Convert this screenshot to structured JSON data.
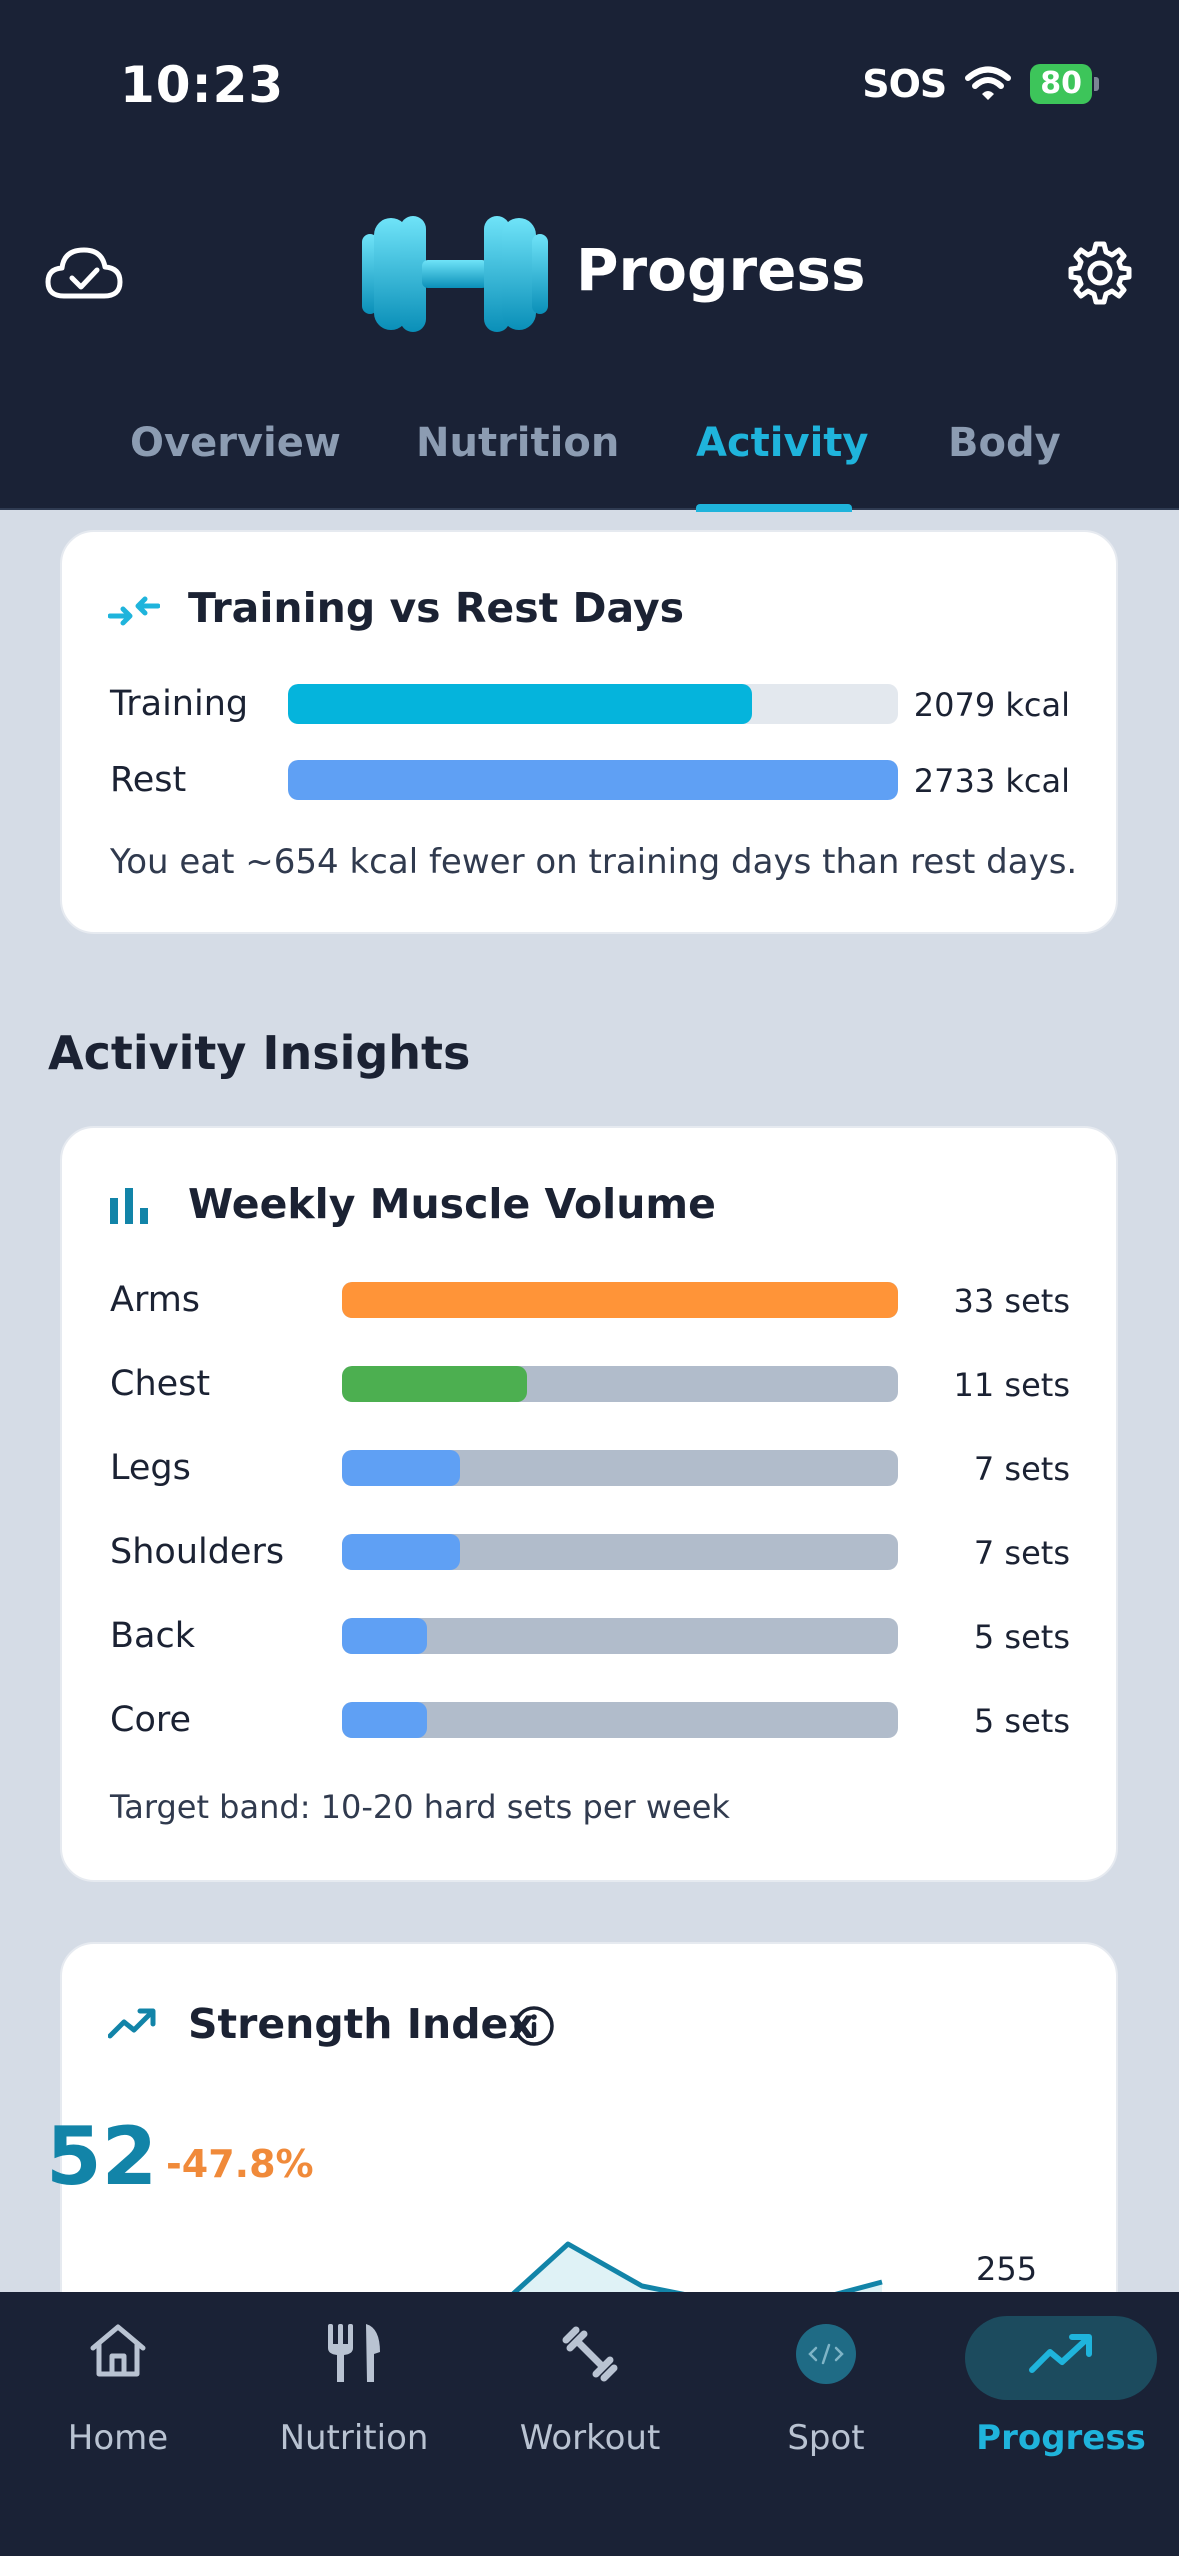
{
  "status_bar": {
    "time": "10:23",
    "sos": "SOS",
    "battery": "80"
  },
  "header": {
    "title": "Progress"
  },
  "tabs": [
    {
      "label": "Overview",
      "active": false
    },
    {
      "label": "Nutrition",
      "active": false
    },
    {
      "label": "Activity",
      "active": true
    },
    {
      "label": "Body",
      "active": false
    }
  ],
  "training_rest": {
    "title": "Training vs Rest Days",
    "rows": [
      {
        "label": "Training",
        "value": "2079 kcal",
        "fill": 0.76,
        "color": "#05b4dc"
      },
      {
        "label": "Rest",
        "value": "2733 kcal",
        "fill": 1.0,
        "color": "#5fa0f4"
      }
    ],
    "summary": "You eat ~654 kcal fewer on training days than rest days."
  },
  "activity_insights": {
    "title": "Activity Insights"
  },
  "muscle_volume": {
    "title": "Weekly Muscle Volume",
    "rows": [
      {
        "label": "Arms",
        "value": "33 sets",
        "fill": 1.0,
        "color": "#ff9438"
      },
      {
        "label": "Chest",
        "value": "11 sets",
        "fill": 0.333,
        "color": "#4caf50"
      },
      {
        "label": "Legs",
        "value": "7 sets",
        "fill": 0.212,
        "color": "#5fa0f4"
      },
      {
        "label": "Shoulders",
        "value": "7 sets",
        "fill": 0.212,
        "color": "#5fa0f4"
      },
      {
        "label": "Back",
        "value": "5 sets",
        "fill": 0.152,
        "color": "#5fa0f4"
      },
      {
        "label": "Core",
        "value": "5 sets",
        "fill": 0.152,
        "color": "#5fa0f4"
      }
    ],
    "footnote": "Target band: 10-20 hard sets per week"
  },
  "strength_index": {
    "title": "Strength Index",
    "value": "52",
    "change": "-47.8%",
    "chart_label": "255"
  },
  "bottom_nav": [
    {
      "label": "Home",
      "icon": "home-icon",
      "active": false
    },
    {
      "label": "Nutrition",
      "icon": "fork-knife-icon",
      "active": false
    },
    {
      "label": "Workout",
      "icon": "dumbbell-icon",
      "active": false
    },
    {
      "label": "Spot",
      "icon": "spot-ai-icon",
      "active": false
    },
    {
      "label": "Progress",
      "icon": "trend-up-icon",
      "active": true
    }
  ],
  "colors": {
    "accent": "#1fb4dc",
    "header_bg": "#1a2236",
    "page_bg": "#d5dce6",
    "track_gray": "#b1bccb",
    "track_light": "#e3e8ee"
  }
}
